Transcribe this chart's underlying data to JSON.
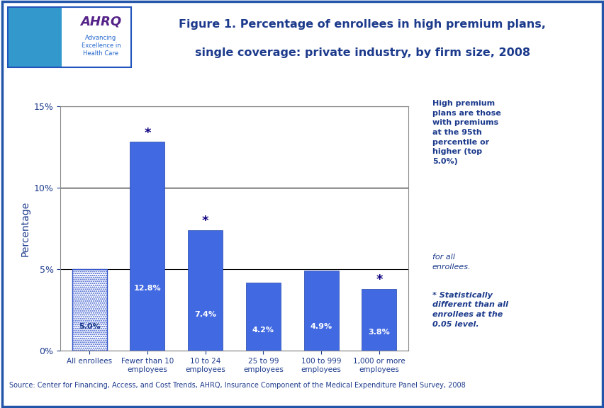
{
  "categories": [
    "All enrollees",
    "Fewer than 10\nemployees",
    "10 to 24\nemployees",
    "25 to 99\nemployees",
    "100 to 999\nemployees",
    "1,000 or more\nemployees"
  ],
  "values": [
    5.0,
    12.8,
    7.4,
    4.2,
    4.9,
    3.8
  ],
  "bar_color_solid": "#4169E1",
  "bar_color_dotted_face": "#FFFFFF",
  "bar_color_dotted_edge": "#3355CC",
  "stat_sig": [
    false,
    true,
    true,
    false,
    false,
    true
  ],
  "value_labels": [
    "5.0%",
    "12.8%",
    "7.4%",
    "4.2%",
    "4.9%",
    "3.8%"
  ],
  "label_color_first": "#1C3A8C",
  "label_color_rest": "#FFFFFF",
  "ylim": [
    0,
    15
  ],
  "yticks": [
    0,
    5,
    10,
    15
  ],
  "ytick_labels": [
    "0%",
    "5%",
    "10%",
    "15%"
  ],
  "ylabel": "Percentage",
  "title_line1": "Figure 1. Percentage of enrollees in high premium plans,",
  "title_line2": "single coverage: private industry, by firm size, 2008",
  "title_color": "#1C3A8C",
  "note1_bold_part": "High premium\nplans are those\nwith premiums\nat the 95th\npercentile or\nhigher (top\n5.0%)",
  "note1_italic_part": " for all\nenrollees.",
  "note2": "* Statistically\ndifferent than all\nenrollees at the\n0.05 level.",
  "source_text": "Source: Center for Financing, Access, and Cost Trends, AHRQ, Insurance Component of the Medical Expenditure Panel Survey, 2008",
  "bg_color": "#FFFFFF",
  "dark_blue": "#0C0080",
  "border_color": "#2255BB",
  "grid_color": "#000000",
  "bar_width": 0.6,
  "note_color": "#1C3A8C",
  "outer_border_color": "#2255AA"
}
